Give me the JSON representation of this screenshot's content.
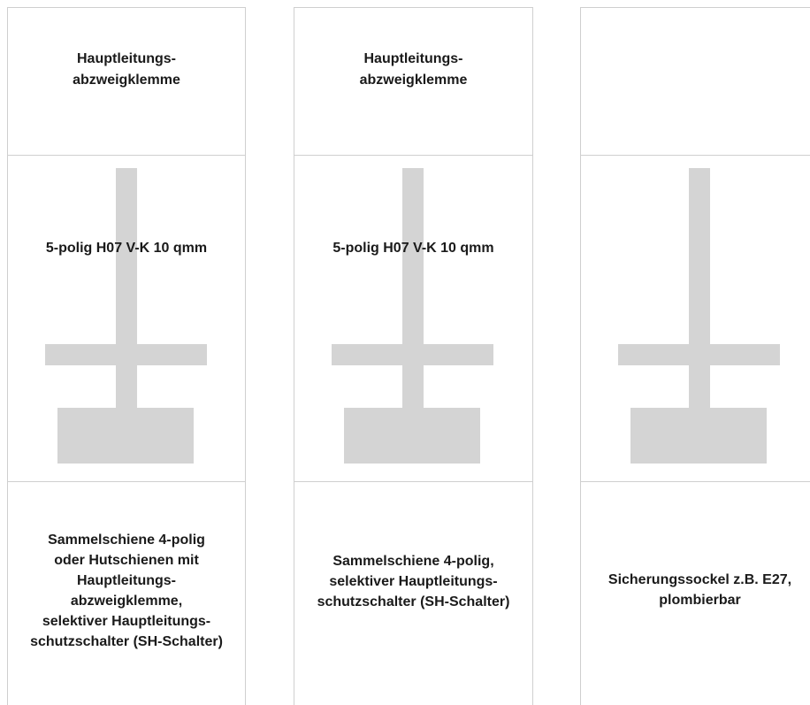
{
  "columns": [
    {
      "top_label": "Hauptleitungs-\nabzweigklemme",
      "mid_label": "5-polig H07 V-K 10 qmm",
      "bottom_label": "Sammelschiene 4-polig\noder Hutschienen mit\nHauptleitungs-\nabzweigklemme,\nselektiver Hauptleitungs-\nschutzschalter (SH-Schalter)"
    },
    {
      "top_label": "Hauptleitungs-\nabzweigklemme",
      "mid_label": "5-polig H07 V-K 10 qmm",
      "bottom_label": "Sammelschiene 4-polig,\nselektiver Hauptleitungs-\nschutzschalter (SH-Schalter)"
    },
    {
      "top_label": "",
      "mid_label": "",
      "bottom_label": "Sicherungssockel z.B. E27,\nplombierbar"
    }
  ],
  "colors": {
    "border": "#cfcfcf",
    "shape_fill": "#d4d4d4",
    "text": "#1a1a1a"
  }
}
